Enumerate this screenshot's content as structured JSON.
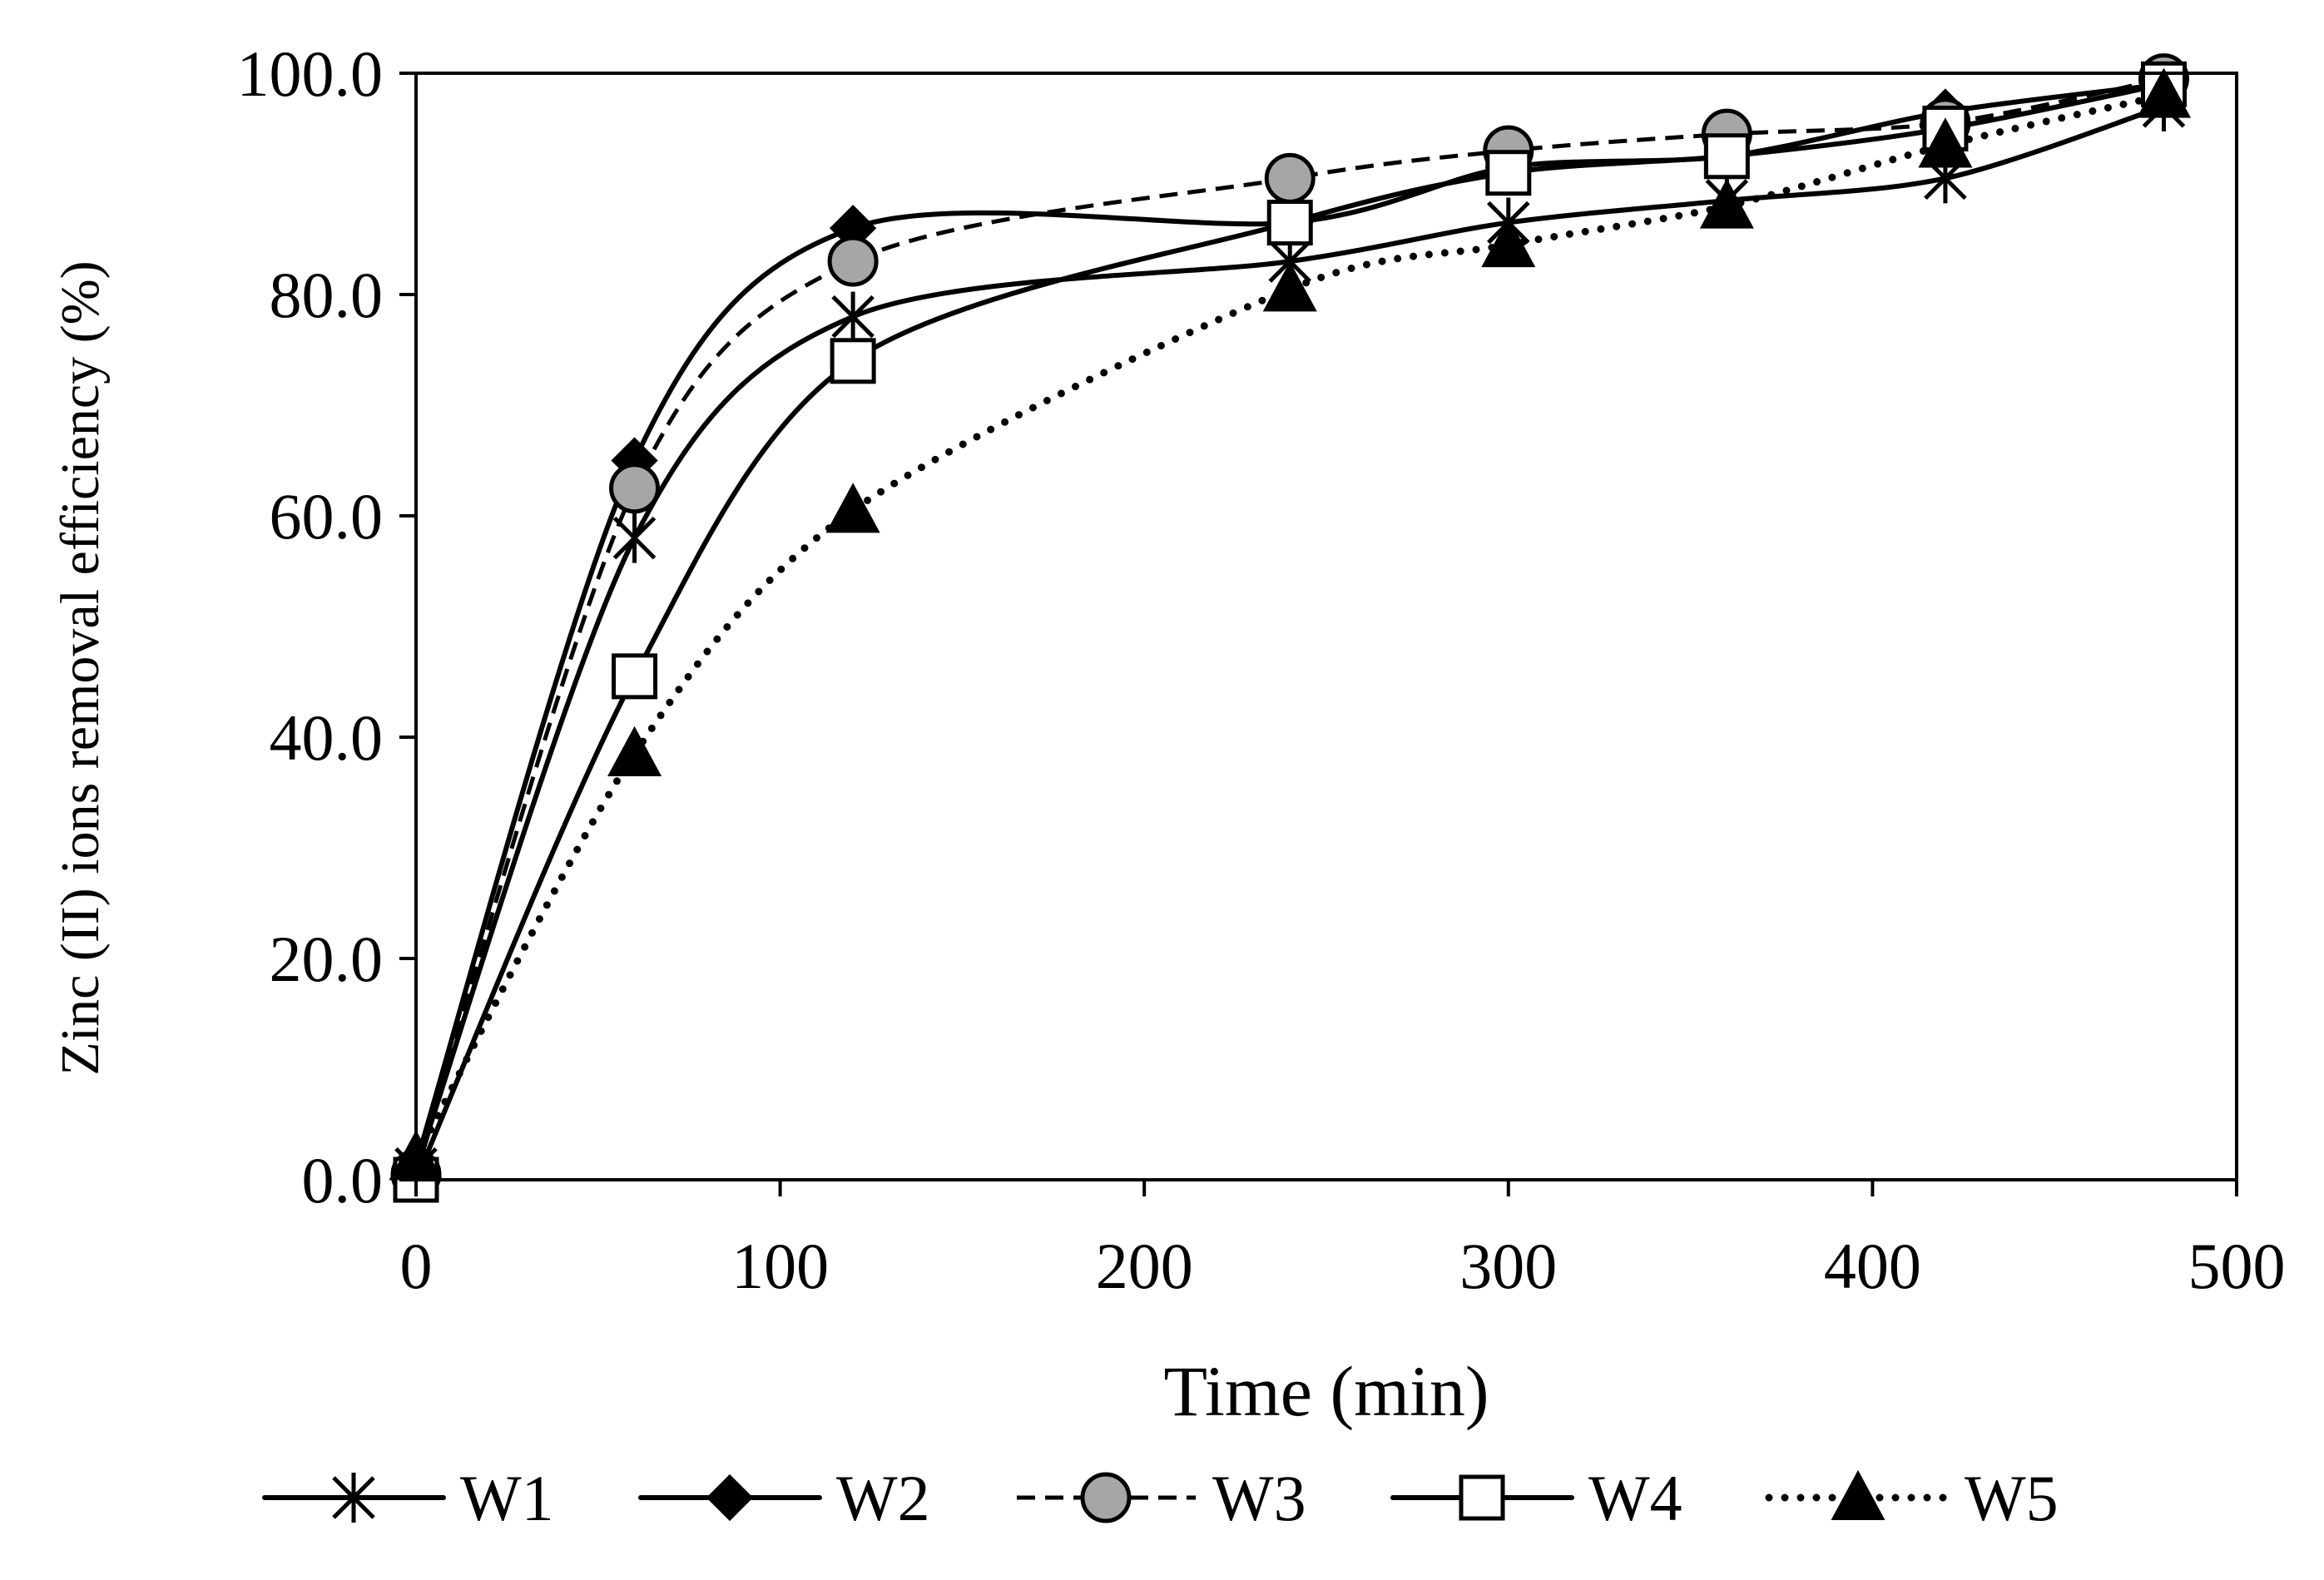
{
  "chart_data": {
    "type": "line",
    "title": "",
    "xlabel": "Time (min)",
    "ylabel": "Zinc (II) ions removal efficiency (%)",
    "xlim": [
      0,
      500
    ],
    "ylim": [
      0,
      100
    ],
    "x_ticks": [
      0,
      100,
      200,
      300,
      400,
      500
    ],
    "y_ticks": [
      0,
      20,
      40,
      60,
      80,
      100
    ],
    "x_tick_labels": [
      "0",
      "100",
      "200",
      "300",
      "400",
      "500"
    ],
    "y_tick_labels": [
      "0.0",
      "20.0",
      "40.0",
      "60.0",
      "80.0",
      "100.0"
    ],
    "grid": false,
    "legend_position": "bottom",
    "x": [
      0,
      60,
      120,
      240,
      300,
      360,
      420,
      480
    ],
    "series": [
      {
        "name": "W1",
        "marker": "star",
        "line": "solid",
        "values": [
          1,
          58,
          78,
          83,
          86.5,
          88.5,
          90.5,
          97
        ]
      },
      {
        "name": "W2",
        "marker": "diamond",
        "line": "solid",
        "values": [
          1.5,
          65,
          86,
          86.5,
          91.5,
          92.5,
          96.5,
          99
        ]
      },
      {
        "name": "W3",
        "marker": "circle",
        "line": "dashed",
        "values": [
          0.5,
          62.5,
          83,
          90.5,
          93,
          94.5,
          95.5,
          99.5
        ]
      },
      {
        "name": "W4",
        "marker": "square",
        "line": "solid",
        "values": [
          0,
          45.5,
          74,
          86.5,
          91,
          92.5,
          95,
          99
        ]
      },
      {
        "name": "W5",
        "marker": "triangle",
        "line": "dotted",
        "values": [
          2,
          38.5,
          60.5,
          80.5,
          84.5,
          88,
          93.5,
          98
        ]
      }
    ]
  }
}
